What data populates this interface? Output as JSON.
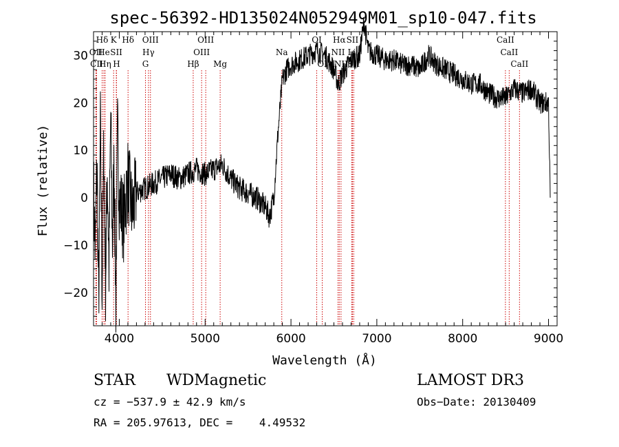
{
  "chart_data": {
    "type": "line",
    "title": "spec-56392-HD135024N052949M01_sp10-047.fits",
    "xlabel": "Wavelength (Å)",
    "ylabel": "Flux (relative)",
    "xlim": [
      3700,
      9100
    ],
    "ylim": [
      -27,
      35
    ],
    "xticks": [
      4000,
      5000,
      6000,
      7000,
      8000,
      9000
    ],
    "yticks": [
      -20,
      -10,
      0,
      10,
      20,
      30
    ],
    "series": [
      {
        "name": "flux",
        "x": [
          3700,
          3720,
          3740,
          3760,
          3780,
          3800,
          3820,
          3840,
          3860,
          3880,
          3900,
          3920,
          3940,
          3960,
          3980,
          4000,
          4050,
          4100,
          4150,
          4200,
          4300,
          4400,
          4500,
          4600,
          4700,
          4800,
          4900,
          5000,
          5100,
          5200,
          5300,
          5400,
          5500,
          5600,
          5700,
          5750,
          5800,
          5850,
          5900,
          5950,
          6000,
          6100,
          6200,
          6300,
          6400,
          6500,
          6550,
          6600,
          6700,
          6800,
          6850,
          6900,
          7000,
          7100,
          7200,
          7300,
          7400,
          7500,
          7600,
          7700,
          7800,
          7900,
          8000,
          8100,
          8200,
          8300,
          8400,
          8500,
          8600,
          8700,
          8800,
          8900,
          9000,
          9020
        ],
        "y": [
          2,
          -12,
          8,
          -23,
          15,
          -20,
          12,
          -18,
          6,
          -15,
          18,
          -10,
          8,
          -22,
          14,
          0,
          -5,
          4,
          -3,
          1,
          2,
          3,
          4,
          5,
          4,
          5,
          6,
          5,
          6,
          7,
          4,
          2,
          1,
          0,
          -2,
          -4,
          0,
          14,
          25,
          27,
          28,
          29,
          30,
          31,
          30,
          27,
          24,
          26,
          29,
          30,
          37,
          31,
          30,
          29,
          29,
          28,
          28,
          27,
          30,
          28,
          27,
          26,
          25,
          24,
          24,
          22,
          21,
          21,
          23,
          22,
          23,
          20,
          20,
          0
        ]
      }
    ],
    "spectral_lines": [
      {
        "label": "Hδ",
        "x": 3800,
        "row": 1
      },
      {
        "label": "OII",
        "x": 3727,
        "row": 2
      },
      {
        "label": "CII",
        "x": 3736,
        "row": 3
      },
      {
        "label": "He",
        "x": 3820,
        "row": 2
      },
      {
        "label": "Hη",
        "x": 3835,
        "row": 3
      },
      {
        "label": "K",
        "x": 3934,
        "row": 1
      },
      {
        "label": "SII",
        "x": 3965,
        "row": 2
      },
      {
        "label": "H",
        "x": 3968,
        "row": 3
      },
      {
        "label": "Hδ",
        "x": 4102,
        "row": 1
      },
      {
        "label": "OIII",
        "x": 4363,
        "row": 1
      },
      {
        "label": "Hγ",
        "x": 4340,
        "row": 2
      },
      {
        "label": "G",
        "x": 4305,
        "row": 3
      },
      {
        "label": "Hβ",
        "x": 4861,
        "row": 3
      },
      {
        "label": "OIII",
        "x": 5007,
        "row": 1
      },
      {
        "label": "OIII",
        "x": 4959,
        "row": 2
      },
      {
        "label": "Mg",
        "x": 5175,
        "row": 3
      },
      {
        "label": "Na",
        "x": 5893,
        "row": 2
      },
      {
        "label": "OI",
        "x": 6300,
        "row": 1
      },
      {
        "label": "OI",
        "x": 6364,
        "row": 3
      },
      {
        "label": "Hα",
        "x": 6563,
        "row": 1
      },
      {
        "label": "NII",
        "x": 6548,
        "row": 2
      },
      {
        "label": "NII",
        "x": 6583,
        "row": 3
      },
      {
        "label": "SII",
        "x": 6716,
        "row": 1
      },
      {
        "label": "Li",
        "x": 6708,
        "row": 2
      },
      {
        "label": "SII",
        "x": 6731,
        "row": 3
      },
      {
        "label": "CaII",
        "x": 8498,
        "row": 1
      },
      {
        "label": "CaII",
        "x": 8542,
        "row": 2
      },
      {
        "label": "CaII",
        "x": 8662,
        "row": 3
      }
    ]
  },
  "info": {
    "class": "STAR",
    "subclass": "WDMagnetic",
    "survey": "LAMOST DR3",
    "cz": "cz = −537.9 ± 42.9 km/s",
    "obs_date": "Obs−Date: 20130409",
    "radec": "RA = 205.97613, DEC =    4.49532"
  },
  "colors": {
    "line": "#000000",
    "marker": "#cc0000"
  }
}
